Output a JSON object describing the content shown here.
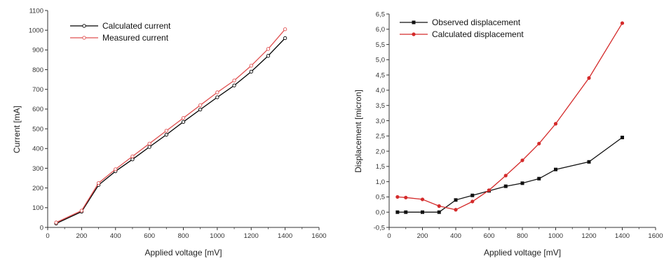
{
  "chart_data": [
    {
      "type": "line",
      "xlabel": "Applied voltage [mV]",
      "ylabel": "Current [mA]",
      "xlim": [
        0,
        1600
      ],
      "ylim": [
        0,
        1100
      ],
      "xticks": [
        0,
        200,
        400,
        600,
        800,
        1000,
        1200,
        1400,
        1600
      ],
      "yticks": [
        0,
        100,
        200,
        300,
        400,
        500,
        600,
        700,
        800,
        900,
        1000,
        1100
      ],
      "legend_position": "top-left",
      "series": [
        {
          "name": "Calculated current",
          "color": "#000000",
          "marker": "open-circle",
          "x": [
            50,
            200,
            300,
            400,
            500,
            600,
            700,
            800,
            900,
            1000,
            1100,
            1200,
            1300,
            1400
          ],
          "y": [
            20,
            80,
            215,
            285,
            345,
            408,
            470,
            535,
            598,
            660,
            720,
            790,
            870,
            960
          ]
        },
        {
          "name": "Measured current",
          "color": "#e05050",
          "marker": "open-circle",
          "x": [
            50,
            200,
            300,
            400,
            500,
            600,
            700,
            800,
            900,
            1000,
            1100,
            1200,
            1300,
            1400
          ],
          "y": [
            25,
            85,
            225,
            295,
            360,
            425,
            490,
            555,
            620,
            685,
            745,
            820,
            905,
            1005
          ]
        }
      ]
    },
    {
      "type": "line",
      "xlabel": "Applied voltage [mV]",
      "ylabel": "Displacement [micron]",
      "xlim": [
        0,
        1600
      ],
      "ylim": [
        -0.5,
        6.5
      ],
      "xticks": [
        0,
        200,
        400,
        600,
        800,
        1000,
        1200,
        1400,
        1600
      ],
      "yticks": [
        -0.5,
        0.0,
        0.5,
        1.0,
        1.5,
        2.0,
        2.5,
        3.0,
        3.5,
        4.0,
        4.5,
        5.0,
        5.5,
        6.0,
        6.5
      ],
      "ytick_labels": [
        "-0,5",
        "0,0",
        "0,5",
        "1,0",
        "1,5",
        "2,0",
        "2,5",
        "3,0",
        "3,5",
        "4,0",
        "4,5",
        "5,0",
        "5,5",
        "6,0",
        "6,5"
      ],
      "legend_position": "top-left",
      "series": [
        {
          "name": "Observed displacement",
          "color": "#111111",
          "marker": "filled-square",
          "x": [
            50,
            100,
            200,
            300,
            400,
            500,
            600,
            700,
            800,
            900,
            1000,
            1200,
            1400
          ],
          "y": [
            0.0,
            0.0,
            0.0,
            0.0,
            0.4,
            0.55,
            0.7,
            0.85,
            0.95,
            1.1,
            1.4,
            1.65,
            2.45
          ]
        },
        {
          "name": "Calculated displacement",
          "color": "#d42a2a",
          "marker": "filled-circle",
          "x": [
            50,
            100,
            200,
            300,
            400,
            500,
            600,
            700,
            800,
            900,
            1000,
            1200,
            1400
          ],
          "y": [
            0.5,
            0.48,
            0.42,
            0.2,
            0.08,
            0.35,
            0.72,
            1.2,
            1.7,
            2.25,
            2.9,
            4.4,
            6.2
          ]
        }
      ]
    }
  ]
}
